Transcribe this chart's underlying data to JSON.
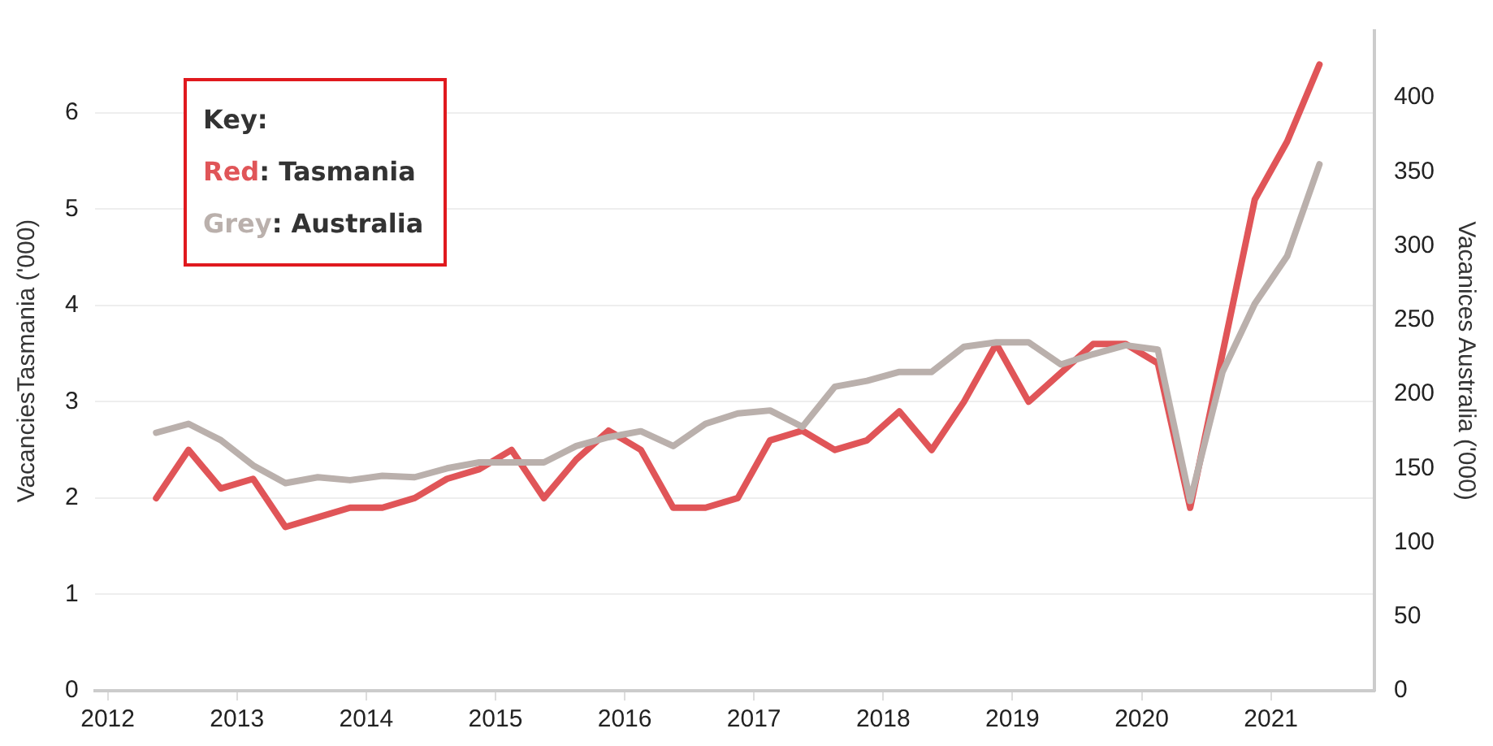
{
  "chart_data": {
    "type": "line",
    "ylabel": "VacanciesTasmania ('000)",
    "y2label": "Vacanices Australia ('000)",
    "legend_title": "Key:",
    "x": [
      2012.375,
      2012.625,
      2012.875,
      2013.125,
      2013.375,
      2013.625,
      2013.875,
      2014.125,
      2014.375,
      2014.625,
      2014.875,
      2015.125,
      2015.375,
      2015.625,
      2015.875,
      2016.125,
      2016.375,
      2016.625,
      2016.875,
      2017.125,
      2017.375,
      2017.625,
      2017.875,
      2018.125,
      2018.375,
      2018.625,
      2018.875,
      2019.125,
      2019.375,
      2019.625,
      2019.875,
      2020.125,
      2020.375,
      2020.625,
      2020.875,
      2021.125,
      2021.375
    ],
    "series": [
      {
        "name": "Red: Tasmania",
        "color": "#e05558",
        "values": [
          2.0,
          2.5,
          2.1,
          2.2,
          1.7,
          1.8,
          1.9,
          1.9,
          2.0,
          2.2,
          2.3,
          2.5,
          2.0,
          2.4,
          2.7,
          2.5,
          1.9,
          1.9,
          2.0,
          2.6,
          2.7,
          2.5,
          2.6,
          2.9,
          2.5,
          3.0,
          3.6,
          3.0,
          3.3,
          3.6,
          3.6,
          3.4,
          1.9,
          3.5,
          5.1,
          5.7,
          6.5
        ]
      },
      {
        "name": "Grey: Australia",
        "color": "#bab0ac",
        "axis": "y2",
        "values": [
          174,
          180,
          169,
          152,
          140,
          144,
          142,
          145,
          144,
          150,
          154,
          154,
          154,
          165,
          171,
          175,
          165,
          180,
          187,
          189,
          178,
          205,
          209,
          215,
          215,
          232,
          235,
          235,
          220,
          227,
          233,
          230,
          128,
          215,
          261,
          293,
          355
        ]
      }
    ],
    "xlim": [
      2011.9,
      2021.8
    ],
    "xticks": [
      2012,
      2013,
      2014,
      2015,
      2016,
      2017,
      2018,
      2019,
      2020,
      2021
    ],
    "ylim": [
      0,
      6.85
    ],
    "yticks": [
      0,
      1,
      2,
      3,
      4,
      5,
      6
    ],
    "y2lim": [
      0,
      445
    ],
    "y2ticks": [
      0,
      50,
      100,
      150,
      200,
      250,
      300,
      350,
      400
    ],
    "grid": "y",
    "legend": "top left",
    "marker": "none",
    "line_style": "solid"
  }
}
